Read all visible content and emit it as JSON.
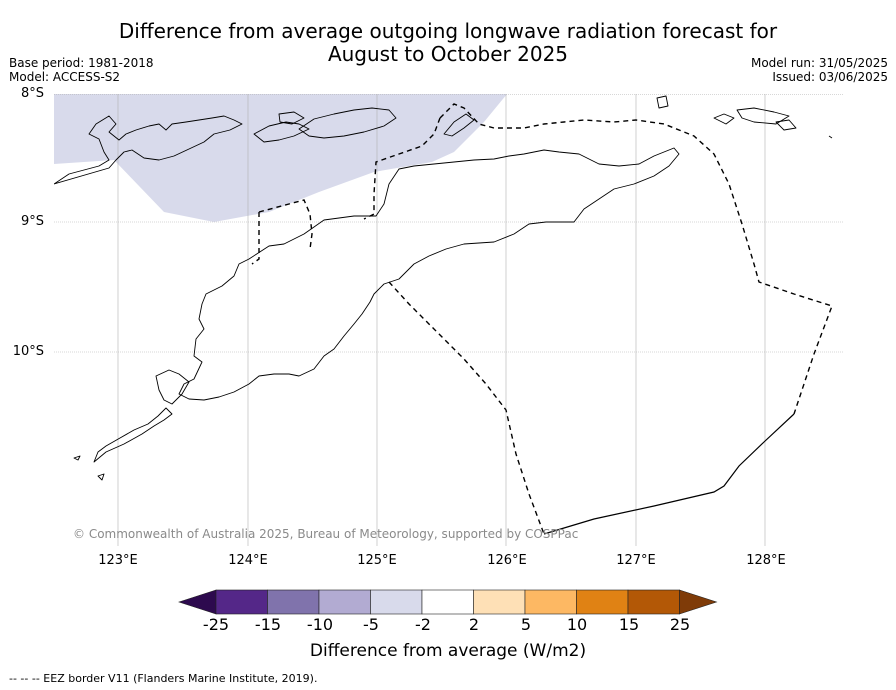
{
  "title_line1": "Difference from average outgoing longwave radiation forecast for",
  "title_line2": "August to October 2025",
  "meta_left": [
    "Base period: 1981-2018",
    "Model: ACCESS-S2"
  ],
  "meta_right": [
    "Model run: 31/05/2025",
    "Issued: 03/06/2025"
  ],
  "map": {
    "lat_labels": [
      "8°S",
      "9°S",
      "10°S"
    ],
    "lon_labels": [
      "123°E",
      "124°E",
      "125°E",
      "126°E",
      "127°E",
      "128°E"
    ],
    "lat_range": [
      -11.5,
      -8.0
    ],
    "lon_range": [
      122.5,
      128.6
    ],
    "grid": true,
    "anomaly_region_category": "-5 to -2",
    "copyright": "© Commonwealth of Australia 2025, Bureau of Meteorology, supported by COSPPac"
  },
  "colorbar": {
    "ticks": [
      "-25",
      "-15",
      "-10",
      "-5",
      "-2",
      "2",
      "5",
      "10",
      "15",
      "25"
    ],
    "colors": [
      "#2d0a4e",
      "#542788",
      "#8073ac",
      "#b2abd2",
      "#d8daeb",
      "#ffffff",
      "#fee0b6",
      "#fdb863",
      "#e08214",
      "#b35806",
      "#7f3b08"
    ],
    "label": "Difference from average (W/m2)"
  },
  "footnote": "--  --  -- EEZ border V11 (Flanders Marine Institute, 2019)."
}
